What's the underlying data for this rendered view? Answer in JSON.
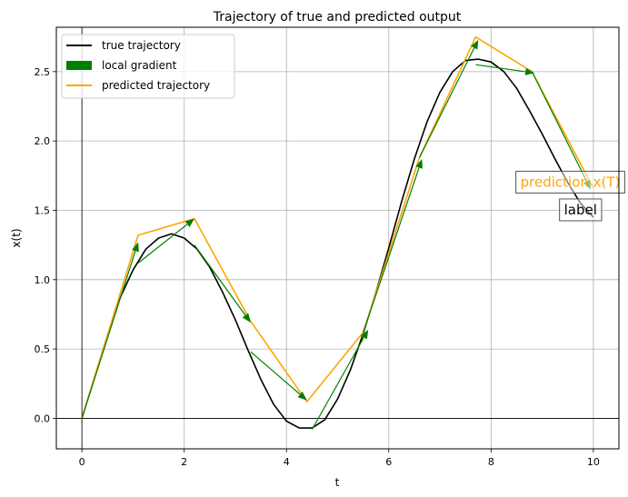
{
  "chart_data": {
    "type": "line",
    "title": "Trajectory of true and predicted output",
    "xlabel": "t",
    "ylabel": "x(t)",
    "xlim": [
      -0.5,
      10.5
    ],
    "ylim": [
      -0.22,
      2.82
    ],
    "xticks": [
      0,
      2,
      4,
      6,
      8,
      10
    ],
    "yticks": [
      0.0,
      0.5,
      1.0,
      1.5,
      2.0,
      2.5
    ],
    "xtick_labels": [
      "0",
      "2",
      "4",
      "6",
      "8",
      "10"
    ],
    "ytick_labels": [
      "0.0",
      "0.5",
      "1.0",
      "1.5",
      "2.0",
      "2.5"
    ],
    "grid": true,
    "zero_lines": true,
    "legend_position": "top-left",
    "legend": [
      {
        "label": "true trajectory",
        "color": "#000000",
        "kind": "line"
      },
      {
        "label": "local gradient",
        "color": "#008000",
        "kind": "patch"
      },
      {
        "label": "predicted trajectory",
        "color": "#ffa500",
        "kind": "line"
      }
    ],
    "series": [
      {
        "name": "true trajectory",
        "color": "#000000",
        "x": [
          0,
          0.25,
          0.5,
          0.75,
          1.0,
          1.25,
          1.5,
          1.75,
          2.0,
          2.25,
          2.5,
          2.75,
          3.0,
          3.25,
          3.5,
          3.75,
          4.0,
          4.25,
          4.5,
          4.75,
          5.0,
          5.25,
          5.5,
          5.75,
          6.0,
          6.25,
          6.5,
          6.75,
          7.0,
          7.25,
          7.5,
          7.75,
          8.0,
          8.25,
          8.5,
          8.75,
          9.0,
          9.25,
          9.5,
          9.75,
          10.0
        ],
        "y": [
          0.0,
          0.3,
          0.6,
          0.87,
          1.07,
          1.22,
          1.3,
          1.33,
          1.3,
          1.22,
          1.09,
          0.91,
          0.71,
          0.49,
          0.28,
          0.1,
          -0.02,
          -0.07,
          -0.07,
          -0.01,
          0.14,
          0.35,
          0.61,
          0.91,
          1.23,
          1.56,
          1.87,
          2.14,
          2.35,
          2.5,
          2.58,
          2.59,
          2.57,
          2.5,
          2.38,
          2.22,
          2.05,
          1.87,
          1.7,
          1.55,
          1.45
        ]
      },
      {
        "name": "predicted trajectory",
        "color": "#ffa500",
        "x": [
          0,
          1.1,
          2.2,
          3.3,
          4.4,
          5.5,
          6.6,
          7.7,
          8.8,
          10.0
        ],
        "y": [
          0.0,
          1.32,
          1.44,
          0.7,
          0.12,
          0.62,
          1.88,
          2.75,
          2.5,
          1.66
        ]
      }
    ],
    "gradients": {
      "name": "local gradient",
      "color": "#008000",
      "arrows": [
        {
          "x": 0.0,
          "y": 0.0,
          "dx": 1.1,
          "dy": 1.27
        },
        {
          "x": 1.1,
          "y": 1.12,
          "dx": 1.1,
          "dy": 0.32
        },
        {
          "x": 2.2,
          "y": 1.25,
          "dx": 1.1,
          "dy": -0.56
        },
        {
          "x": 3.3,
          "y": 0.48,
          "dx": 1.1,
          "dy": -0.35
        },
        {
          "x": 4.5,
          "y": -0.08,
          "dx": 1.1,
          "dy": 0.72
        },
        {
          "x": 5.5,
          "y": 0.62,
          "dx": 1.15,
          "dy": 1.25
        },
        {
          "x": 6.6,
          "y": 1.88,
          "dx": 1.15,
          "dy": 0.85
        },
        {
          "x": 7.7,
          "y": 2.55,
          "dx": 1.15,
          "dy": -0.06
        },
        {
          "x": 8.8,
          "y": 2.5,
          "dx": 1.15,
          "dy": -0.85
        }
      ]
    },
    "annotations": [
      {
        "text": "prediction x(T)",
        "x": 9.55,
        "y": 1.7,
        "color": "#ffa500",
        "fontsize": 15,
        "box": true
      },
      {
        "text": "label",
        "x": 9.75,
        "y": 1.5,
        "color": "#000000",
        "fontsize": 15,
        "box": true
      }
    ]
  }
}
